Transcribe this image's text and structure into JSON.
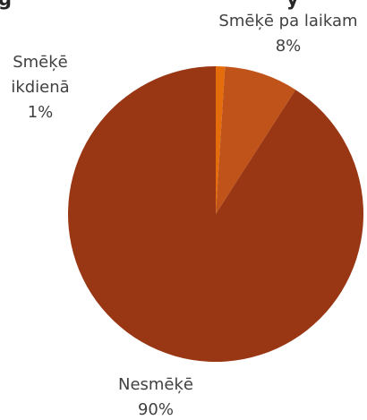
{
  "chart_data": {
    "type": "pie",
    "title": "",
    "slices": [
      {
        "label": "Smēķē ikdienā",
        "value": 1,
        "value_label": "1%",
        "color": "#e46c0a"
      },
      {
        "label": "Smēķē pa laikam",
        "value": 8,
        "value_label": "8%",
        "color": "#c0531a"
      },
      {
        "label": "Nesmēķē",
        "value": 90,
        "value_label": "90%",
        "color": "#993613"
      }
    ],
    "start_angle_deg": 0,
    "direction": "clockwise"
  }
}
